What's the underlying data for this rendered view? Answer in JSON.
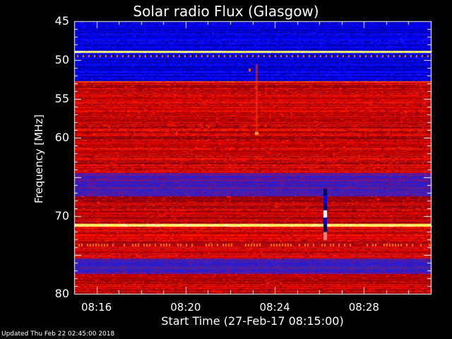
{
  "title": "Solar radio Flux (Glasgow)",
  "footer": "Updated Thu Feb 22 02:45:00 2018",
  "chart_data": {
    "type": "heatmap",
    "title": "Solar radio Flux (Glasgow)",
    "ylabel": "Frequency [MHz]",
    "xlabel": "Start Time (27-Feb-17 08:15:00)",
    "ylim": [
      45,
      80
    ],
    "y_inverted": true,
    "x_range_minutes": [
      "08:15",
      "08:31"
    ],
    "yticks": [
      "45",
      "50",
      "55",
      "60",
      "65",
      "70",
      "75",
      "80"
    ],
    "ytick_labels_visible": [
      "45",
      "50",
      "55",
      "60",
      "",
      "70",
      "",
      "80"
    ],
    "xticks": [
      "08:16",
      "08:20",
      "08:24",
      "08:28"
    ],
    "colormap": [
      "#000080",
      "#0000ff",
      "#800000",
      "#ff0000",
      "#ffff00",
      "#ffffff"
    ],
    "bands": [
      {
        "from_mhz": 45.0,
        "to_mhz": 45.5,
        "level": "low"
      },
      {
        "from_mhz": 45.5,
        "to_mhz": 48.8,
        "level": "low"
      },
      {
        "from_mhz": 48.8,
        "to_mhz": 49.1,
        "level": "max"
      },
      {
        "from_mhz": 49.1,
        "to_mhz": 52.7,
        "level": "low"
      },
      {
        "from_mhz": 52.7,
        "to_mhz": 52.9,
        "level": "high"
      },
      {
        "from_mhz": 52.9,
        "to_mhz": 64.5,
        "level": "mid"
      },
      {
        "from_mhz": 64.5,
        "to_mhz": 67.5,
        "level": "low-mid"
      },
      {
        "from_mhz": 67.5,
        "to_mhz": 71.0,
        "level": "mid"
      },
      {
        "from_mhz": 71.0,
        "to_mhz": 71.4,
        "level": "max"
      },
      {
        "from_mhz": 71.4,
        "to_mhz": 75.5,
        "level": "mid"
      },
      {
        "from_mhz": 75.5,
        "to_mhz": 77.5,
        "level": "low-mid"
      },
      {
        "from_mhz": 77.5,
        "to_mhz": 80.0,
        "level": "mid"
      }
    ],
    "events": [
      {
        "time": "08:23:10",
        "freq_from": 50.5,
        "freq_to": 59.5,
        "kind": "streak"
      },
      {
        "time": "08:26:15",
        "freq_from": 66.5,
        "freq_to": 73.0,
        "kind": "burst"
      }
    ]
  }
}
